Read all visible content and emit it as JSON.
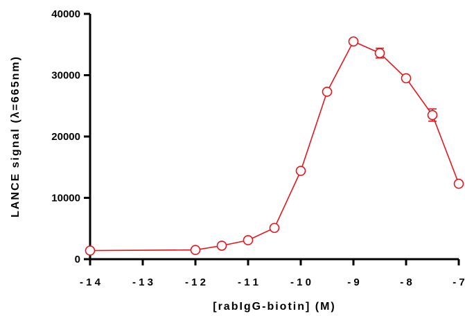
{
  "chart_data": {
    "type": "scatter",
    "xlabel": "[rabIgG-biotin] (M)",
    "ylabel": "LANCE signal (λ=665nm)",
    "xlim": [
      -14,
      -7
    ],
    "ylim": [
      0,
      40000
    ],
    "x_ticks": [
      -14,
      -13,
      -12,
      -11,
      -10,
      -9,
      -8,
      -7
    ],
    "y_ticks": [
      0,
      10000,
      20000,
      30000,
      40000
    ],
    "grid": false,
    "line_color": "#e8141b",
    "series": [
      {
        "x": [
          -14,
          -12,
          -11.5,
          -11,
          -10.5,
          -10,
          -9.5,
          -9,
          -8.5,
          -8,
          -7.5,
          -7
        ],
        "y": [
          1400,
          1500,
          2200,
          3100,
          5100,
          14400,
          27300,
          35500,
          33600,
          29500,
          23500,
          12300
        ],
        "error": [
          0,
          0,
          0,
          0,
          0,
          0,
          0,
          0,
          800,
          0,
          1000,
          0
        ]
      }
    ]
  }
}
